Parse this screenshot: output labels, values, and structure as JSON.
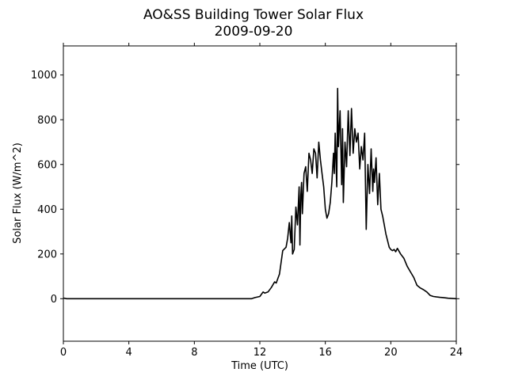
{
  "chart_data": {
    "type": "line",
    "title": "AO&SS Building Tower Solar Flux",
    "subtitle": "2009-09-20",
    "xlabel": "Time (UTC)",
    "ylabel": "Solar Flux (W/m^2)",
    "xlim": [
      0,
      24
    ],
    "ylim": [
      -190,
      1130
    ],
    "xticks": [
      0,
      4,
      8,
      12,
      16,
      20,
      24
    ],
    "yticks": [
      0,
      200,
      400,
      600,
      800,
      1000
    ],
    "grid": false,
    "line_color": "#000000",
    "series": [
      {
        "x": [
          0,
          0.2,
          1,
          4,
          8,
          11.5,
          11.7,
          12.0,
          12.2,
          12.3,
          12.5,
          12.7,
          12.9,
          13.0,
          13.1,
          13.2,
          13.4,
          13.6,
          13.7,
          13.8,
          13.9,
          13.95,
          14.0,
          14.1,
          14.2,
          14.3,
          14.4,
          14.45,
          14.5,
          14.55,
          14.6,
          14.7,
          14.8,
          14.9,
          15.0,
          15.1,
          15.2,
          15.3,
          15.4,
          15.5,
          15.6,
          15.7,
          15.8,
          15.9,
          16.0,
          16.1,
          16.2,
          16.3,
          16.4,
          16.5,
          16.55,
          16.6,
          16.7,
          16.75,
          16.8,
          16.9,
          17.0,
          17.05,
          17.1,
          17.2,
          17.3,
          17.4,
          17.5,
          17.6,
          17.7,
          17.8,
          17.9,
          18.0,
          18.1,
          18.2,
          18.3,
          18.4,
          18.5,
          18.6,
          18.7,
          18.8,
          18.9,
          18.95,
          19.0,
          19.1,
          19.2,
          19.3,
          19.4,
          19.5,
          19.6,
          19.7,
          19.8,
          19.9,
          20.0,
          20.1,
          20.2,
          20.3,
          20.4,
          20.6,
          20.8,
          21.0,
          21.2,
          21.4,
          21.6,
          21.8,
          22.0,
          22.2,
          22.4,
          22.6,
          22.8,
          23.0,
          23.2,
          23.5,
          24.0
        ],
        "y": [
          3,
          0,
          0,
          0,
          0,
          0,
          5,
          10,
          30,
          25,
          30,
          50,
          75,
          70,
          90,
          110,
          215,
          230,
          270,
          340,
          250,
          370,
          200,
          220,
          410,
          330,
          500,
          240,
          460,
          520,
          380,
          560,
          590,
          480,
          650,
          620,
          560,
          670,
          650,
          540,
          700,
          620,
          560,
          500,
          400,
          360,
          380,
          430,
          520,
          650,
          560,
          740,
          500,
          940,
          680,
          840,
          510,
          760,
          430,
          700,
          590,
          840,
          640,
          850,
          650,
          760,
          700,
          740,
          580,
          680,
          620,
          740,
          310,
          600,
          470,
          670,
          480,
          580,
          520,
          630,
          420,
          560,
          400,
          370,
          330,
          290,
          260,
          230,
          220,
          215,
          220,
          210,
          225,
          200,
          180,
          145,
          120,
          95,
          60,
          48,
          40,
          30,
          15,
          10,
          8,
          6,
          5,
          2,
          0
        ]
      }
    ]
  }
}
